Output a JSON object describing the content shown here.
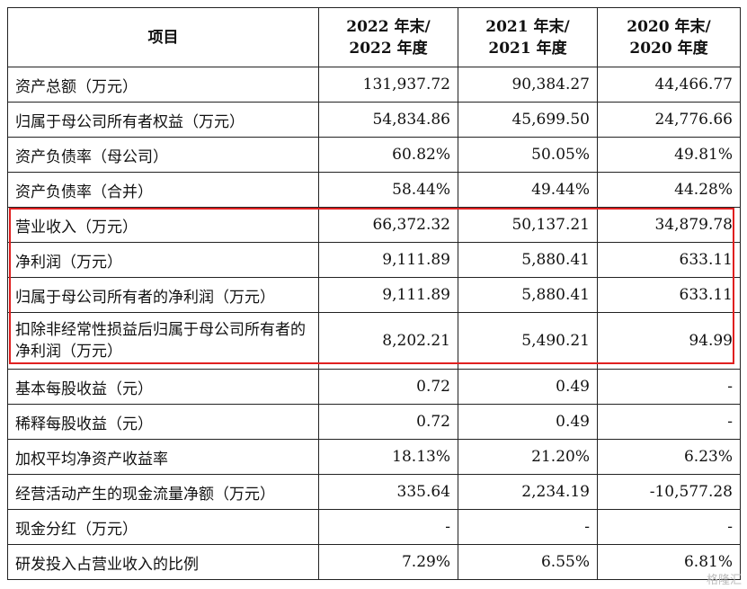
{
  "table": {
    "headers": [
      "项目",
      "2022 年末/\n2022 年度",
      "2021 年末/\n2021 年度",
      "2020 年末/\n2020 年度"
    ],
    "header_lines": [
      [
        "2022 年末/",
        "2022 年度"
      ],
      [
        "2021 年末/",
        "2021 年度"
      ],
      [
        "2020 年末/",
        "2020 年度"
      ]
    ],
    "rows": [
      {
        "label": "资产总额（万元）",
        "v2022": "131,937.72",
        "v2021": "90,384.27",
        "v2020": "44,466.77"
      },
      {
        "label": "归属于母公司所有者权益（万元）",
        "v2022": "54,834.86",
        "v2021": "45,699.50",
        "v2020": "24,776.66"
      },
      {
        "label": "资产负债率（母公司）",
        "v2022": "60.82%",
        "v2021": "50.05%",
        "v2020": "49.81%"
      },
      {
        "label": "资产负债率（合并）",
        "v2022": "58.44%",
        "v2021": "49.44%",
        "v2020": "44.28%"
      },
      {
        "label": "营业收入（万元）",
        "v2022": "66,372.32",
        "v2021": "50,137.21",
        "v2020": "34,879.78"
      },
      {
        "label": "净利润（万元）",
        "v2022": "9,111.89",
        "v2021": "5,880.41",
        "v2020": "633.11"
      },
      {
        "label": "归属于母公司所有者的净利润（万元）",
        "v2022": "9,111.89",
        "v2021": "5,880.41",
        "v2020": "633.11"
      },
      {
        "label": "扣除非经常性损益后归属于母公司所有者的净利润（万元）",
        "v2022": "8,202.21",
        "v2021": "5,490.21",
        "v2020": "94.99"
      },
      {
        "label": "基本每股收益（元）",
        "v2022": "0.72",
        "v2021": "0.49",
        "v2020": "-"
      },
      {
        "label": "稀释每股收益（元）",
        "v2022": "0.72",
        "v2021": "0.49",
        "v2020": "-"
      },
      {
        "label": "加权平均净资产收益率",
        "v2022": "18.13%",
        "v2021": "21.20%",
        "v2020": "6.23%"
      },
      {
        "label": "经营活动产生的现金流量净额（万元）",
        "v2022": "335.64",
        "v2021": "2,234.19",
        "v2020": "-10,577.28"
      },
      {
        "label": "现金分红（万元）",
        "v2022": "-",
        "v2021": "-",
        "v2020": "-"
      },
      {
        "label": "研发投入占营业收入的比例",
        "v2022": "7.29%",
        "v2021": "6.55%",
        "v2020": "6.81%"
      }
    ]
  },
  "highlight_color": "#e02020",
  "watermark": "格隆汇"
}
